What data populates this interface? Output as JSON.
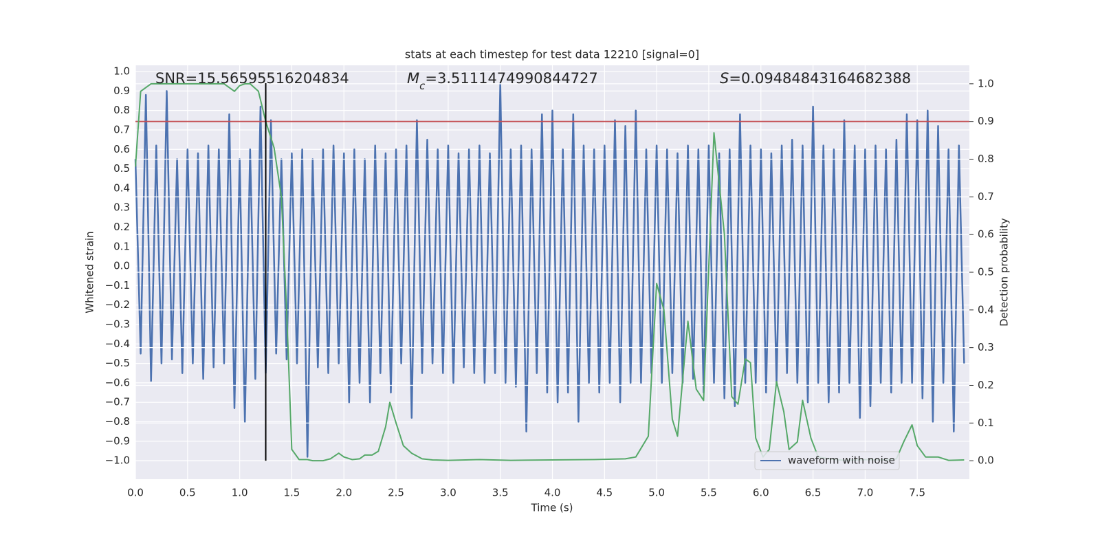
{
  "chart_data": {
    "type": "line",
    "title": "stats at each timestep for test data 12210 [signal=0]",
    "xlabel": "Time (s)",
    "ylabel": "Whitened strain",
    "y2label": "Detection probability",
    "xlim": [
      0,
      8.0
    ],
    "ylim": [
      -1.095,
      1.032
    ],
    "y2lim": [
      -0.049,
      1.049
    ],
    "xticks": [
      {
        "value": 0,
        "label": "0.0"
      },
      0.5,
      {
        "value": 1,
        "label": "1.0"
      },
      1.5,
      {
        "value": 2,
        "label": "2.0"
      },
      2.5,
      {
        "value": 3,
        "label": "3.0"
      },
      3.5,
      {
        "value": 4,
        "label": "4.0"
      },
      4.5,
      {
        "value": 5,
        "label": "5.0"
      },
      5.5,
      {
        "value": 6,
        "label": "6.0"
      },
      6.5,
      {
        "value": 7,
        "label": "7.0"
      },
      7.5
    ],
    "yticks": [
      {
        "value": -1,
        "label": "−1.0"
      },
      {
        "value": -0.9,
        "label": "−0.9"
      },
      {
        "value": -0.8,
        "label": "−0.8"
      },
      {
        "value": -0.7,
        "label": "−0.7"
      },
      {
        "value": -0.6,
        "label": "−0.6"
      },
      {
        "value": -0.5,
        "label": "−0.5"
      },
      {
        "value": -0.4,
        "label": "−0.4"
      },
      {
        "value": -0.3,
        "label": "−0.3"
      },
      {
        "value": -0.2,
        "label": "−0.2"
      },
      {
        "value": -0.1,
        "label": "−0.1"
      },
      {
        "value": 0,
        "label": "0.0"
      },
      0.1,
      0.2,
      0.3,
      0.4,
      0.5,
      0.6,
      0.7,
      0.8,
      0.9,
      {
        "value": 1,
        "label": "1.0"
      }
    ],
    "y2ticks": [
      {
        "value": 0,
        "label": "0.0"
      },
      0.1,
      0.2,
      0.3,
      0.4,
      0.5,
      0.6,
      0.7,
      0.8,
      0.9,
      {
        "value": 1,
        "label": "1.0"
      }
    ],
    "grid": true,
    "legend": "lower right",
    "series": [
      {
        "name": "waveform with noise",
        "color": "#4c72b0",
        "x": [
          0,
          0.05,
          0.1,
          0.15,
          0.2,
          0.25,
          0.3,
          0.35,
          0.4,
          0.45,
          0.5,
          0.55,
          0.6,
          0.65,
          0.7,
          0.75,
          0.8,
          0.85,
          0.9,
          0.95,
          1.0,
          1.05,
          1.1,
          1.15,
          1.2,
          1.25,
          1.3,
          1.35,
          1.4,
          1.45,
          1.5,
          1.55,
          1.6,
          1.65,
          1.7,
          1.75,
          1.8,
          1.85,
          1.9,
          1.95,
          2.0,
          2.05,
          2.1,
          2.15,
          2.2,
          2.25,
          2.3,
          2.35,
          2.4,
          2.45,
          2.5,
          2.55,
          2.6,
          2.65,
          2.7,
          2.75,
          2.8,
          2.85,
          2.9,
          2.95,
          3.0,
          3.05,
          3.1,
          3.15,
          3.2,
          3.25,
          3.3,
          3.35,
          3.4,
          3.45,
          3.5,
          3.55,
          3.6,
          3.65,
          3.7,
          3.75,
          3.8,
          3.85,
          3.9,
          3.95,
          4.0,
          4.05,
          4.1,
          4.15,
          4.2,
          4.25,
          4.3,
          4.35,
          4.4,
          4.45,
          4.5,
          4.55,
          4.6,
          4.65,
          4.7,
          4.75,
          4.8,
          4.85,
          4.9,
          4.95,
          5.0,
          5.05,
          5.1,
          5.15,
          5.2,
          5.25,
          5.3,
          5.35,
          5.4,
          5.45,
          5.5,
          5.55,
          5.6,
          5.65,
          5.7,
          5.75,
          5.8,
          5.85,
          5.9,
          5.95,
          6.0,
          6.05,
          6.1,
          6.15,
          6.2,
          6.25,
          6.3,
          6.35,
          6.4,
          6.45,
          6.5,
          6.55,
          6.6,
          6.65,
          6.7,
          6.75,
          6.8,
          6.85,
          6.9,
          6.95,
          7.0,
          7.05,
          7.1,
          7.15,
          7.2,
          7.25,
          7.3,
          7.35,
          7.4,
          7.45,
          7.5,
          7.55,
          7.6,
          7.65,
          7.7,
          7.75,
          7.8,
          7.85,
          7.9,
          7.95
        ],
        "values": [
          0.55,
          -0.45,
          0.88,
          -0.59,
          0.62,
          -0.5,
          0.9,
          -0.48,
          0.55,
          -0.55,
          0.6,
          -0.5,
          0.58,
          -0.58,
          0.62,
          -0.52,
          0.6,
          -0.5,
          0.78,
          -0.73,
          0.55,
          -0.8,
          0.6,
          -0.58,
          0.82,
          -0.55,
          0.75,
          -0.45,
          0.55,
          -0.48,
          0.58,
          -0.5,
          0.6,
          -0.98,
          0.55,
          -0.52,
          0.6,
          -0.55,
          0.62,
          -0.5,
          0.58,
          -0.7,
          0.6,
          -0.6,
          0.55,
          -0.7,
          0.62,
          -0.55,
          0.58,
          -0.65,
          0.6,
          -0.5,
          0.62,
          -0.78,
          0.75,
          -0.55,
          0.65,
          -0.5,
          0.6,
          -0.55,
          0.62,
          -0.6,
          0.58,
          -0.52,
          0.6,
          -0.55,
          0.62,
          -0.6,
          0.58,
          -0.55,
          0.94,
          -0.6,
          0.6,
          -0.62,
          0.62,
          -0.85,
          0.6,
          -0.55,
          0.78,
          -0.65,
          0.8,
          -0.7,
          0.6,
          -0.65,
          0.78,
          -0.8,
          0.62,
          -0.6,
          0.6,
          -0.65,
          0.62,
          -0.6,
          0.75,
          -0.7,
          0.72,
          -0.6,
          0.8,
          -0.6,
          0.6,
          -0.55,
          0.62,
          -0.6,
          0.6,
          -0.55,
          0.58,
          -0.6,
          0.62,
          -0.58,
          0.6,
          -0.65,
          0.62,
          -0.6,
          0.58,
          -0.68,
          0.6,
          -0.72,
          0.78,
          -0.6,
          0.62,
          -0.6,
          0.6,
          -0.65,
          0.58,
          -0.6,
          0.62,
          -0.55,
          0.65,
          -0.6,
          0.62,
          -0.7,
          0.82,
          -0.6,
          0.62,
          -0.7,
          0.6,
          -0.65,
          0.75,
          -0.6,
          0.62,
          -0.78,
          0.6,
          -0.72,
          0.62,
          -0.6,
          0.6,
          -0.65,
          0.65,
          -0.6,
          0.78,
          -0.6,
          0.75,
          -0.68,
          0.8,
          -0.8,
          0.72,
          -0.6,
          0.6,
          -0.85,
          0.62,
          -0.5
        ]
      },
      {
        "color": "#55a868",
        "axis": "y2",
        "x": [
          0,
          0.05,
          0.1,
          0.15,
          0.3,
          0.5,
          0.7,
          0.85,
          0.95,
          1.0,
          1.05,
          1.1,
          1.18,
          1.25,
          1.33,
          1.4,
          1.45,
          1.5,
          1.57,
          1.65,
          1.7,
          1.8,
          1.87,
          1.95,
          2.0,
          2.08,
          2.15,
          2.2,
          2.27,
          2.33,
          2.4,
          2.44,
          2.5,
          2.57,
          2.65,
          2.75,
          2.85,
          3.0,
          3.3,
          3.6,
          4.0,
          4.4,
          4.7,
          4.8,
          4.92,
          5.0,
          5.07,
          5.15,
          5.2,
          5.3,
          5.38,
          5.45,
          5.55,
          5.65,
          5.72,
          5.78,
          5.85,
          5.9,
          5.95,
          6.02,
          6.08,
          6.15,
          6.22,
          6.27,
          6.35,
          6.4,
          6.48,
          6.55,
          6.65,
          6.8,
          7.0,
          7.2,
          7.3,
          7.37,
          7.45,
          7.5,
          7.58,
          7.7,
          7.8,
          7.95
        ],
        "values": [
          0.78,
          0.98,
          0.99,
          1.0,
          1.0,
          1.0,
          1.0,
          1.0,
          0.98,
          0.995,
          1.0,
          1.0,
          0.98,
          0.9,
          0.83,
          0.7,
          0.4,
          0.03,
          0.003,
          0.003,
          0.0,
          0.0,
          0.005,
          0.02,
          0.01,
          0.003,
          0.005,
          0.015,
          0.015,
          0.025,
          0.09,
          0.155,
          0.1,
          0.04,
          0.02,
          0.005,
          0.002,
          0.001,
          0.003,
          0.001,
          0.002,
          0.003,
          0.005,
          0.01,
          0.065,
          0.47,
          0.4,
          0.11,
          0.065,
          0.37,
          0.19,
          0.16,
          0.87,
          0.6,
          0.17,
          0.15,
          0.27,
          0.26,
          0.06,
          0.01,
          0.03,
          0.21,
          0.13,
          0.03,
          0.05,
          0.16,
          0.06,
          0.01,
          0.005,
          0.001,
          0.003,
          0.002,
          0.005,
          0.05,
          0.095,
          0.04,
          0.01,
          0.01,
          0.001,
          0.002
        ]
      }
    ],
    "hlines": [
      {
        "value": 0.9,
        "axis": "y2",
        "color": "#c44e52"
      }
    ],
    "vlines": [
      {
        "x": 1.25,
        "ylim": [
          -1.0,
          0.94
        ],
        "color": "#000000"
      }
    ],
    "annotations": [
      {
        "parts": [
          {
            "text": "SNR=15.56595516204834"
          }
        ]
      },
      {
        "parts": [
          {
            "text": "M",
            "style": "italic"
          },
          {
            "text": "c",
            "style": "italic-sub"
          },
          {
            "text": "=3.5111474990844727"
          }
        ]
      },
      {
        "parts": [
          {
            "text": "S",
            "style": "italic"
          },
          {
            "text": "=0.09484843164682388"
          }
        ]
      }
    ]
  }
}
